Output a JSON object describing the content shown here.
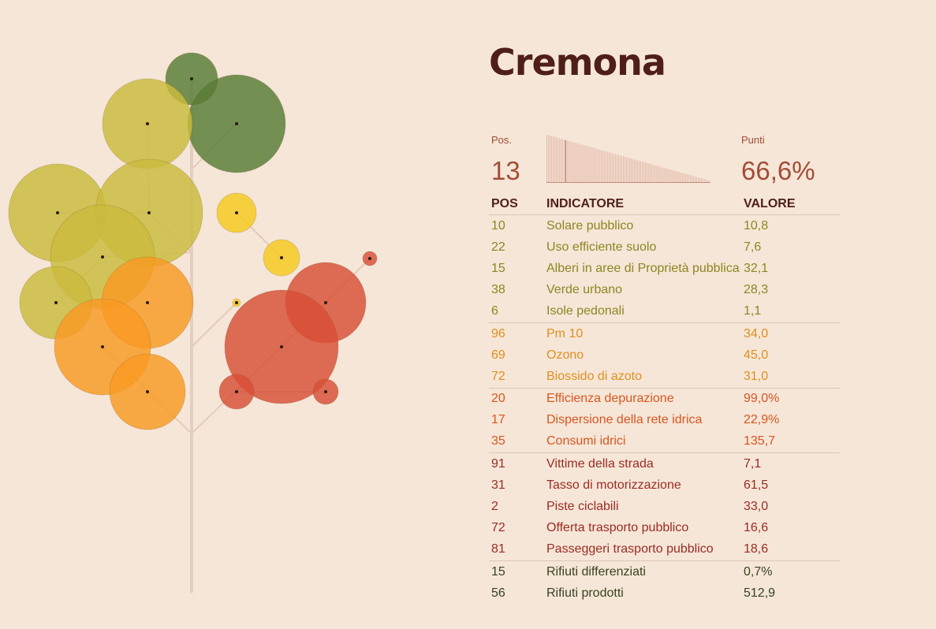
{
  "colors": {
    "background": "#f5e6d8",
    "title": "#4f1f17",
    "accent": "#a24d34",
    "groups": [
      "#8e8620",
      "#e08f1e",
      "#d9561e",
      "#9c2c22",
      "#38421e"
    ],
    "circles": [
      "#cbbb3c",
      "#f99a22",
      "#f6c91c",
      "#d84e35",
      "#587b35"
    ]
  },
  "city": "Cremona",
  "summary": {
    "pos_label": "Pos.",
    "pos_value": "13",
    "points_label": "Punti",
    "points_value": "66,6%"
  },
  "table": {
    "headers": [
      "POS",
      "INDICATORE",
      "VALORE"
    ],
    "groups": [
      {
        "rows": [
          {
            "pos": "10",
            "indicator": "Solare pubblico",
            "value": "10,8"
          },
          {
            "pos": "22",
            "indicator": "Uso efficiente suolo",
            "value": "7,6"
          },
          {
            "pos": "15",
            "indicator": "Alberi in aree di Proprietà pubblica",
            "value": "32,1"
          },
          {
            "pos": "38",
            "indicator": "Verde urbano",
            "value": "28,3"
          },
          {
            "pos": "6",
            "indicator": "Isole pedonali",
            "value": "1,1"
          }
        ]
      },
      {
        "rows": [
          {
            "pos": "96",
            "indicator": "Pm 10",
            "value": "34,0"
          },
          {
            "pos": "69",
            "indicator": "Ozono",
            "value": "45,0"
          },
          {
            "pos": "72",
            "indicator": "Biossido di azoto",
            "value": "31,0"
          }
        ]
      },
      {
        "rows": [
          {
            "pos": "20",
            "indicator": "Efficienza depurazione",
            "value": "99,0%"
          },
          {
            "pos": "17",
            "indicator": "Dispersione della rete idrica",
            "value": "22,9%"
          },
          {
            "pos": "35",
            "indicator": "Consumi idrici",
            "value": "135,7"
          }
        ]
      },
      {
        "rows": [
          {
            "pos": "91",
            "indicator": "Vittime della strada",
            "value": "7,1"
          },
          {
            "pos": "31",
            "indicator": "Tasso di motorizzazione",
            "value": "61,5"
          },
          {
            "pos": "2",
            "indicator": "Piste ciclabili",
            "value": "33,0"
          },
          {
            "pos": "72",
            "indicator": "Offerta trasporto pubblico",
            "value": "16,6"
          },
          {
            "pos": "81",
            "indicator": "Passeggeri trasporto pubblico",
            "value": "18,6"
          }
        ]
      },
      {
        "rows": [
          {
            "pos": "15",
            "indicator": "Rifiuti differenziati",
            "value": "0,7%"
          },
          {
            "pos": "56",
            "indicator": "Rifiuti prodotti",
            "value": "512,9"
          }
        ]
      }
    ]
  },
  "chart_data": [
    {
      "type": "bar",
      "description_note": "",
      "categories": [],
      "values": [],
      "bar_count": 105,
      "highlight_rank": 13,
      "trend": "descending"
    },
    {
      "type": "scatter",
      "values": [],
      "circle_groups": [
        "#cbbb3c",
        "#f99a22",
        "#f6c91c",
        "#d84e35",
        "#587b35"
      ]
    }
  ]
}
